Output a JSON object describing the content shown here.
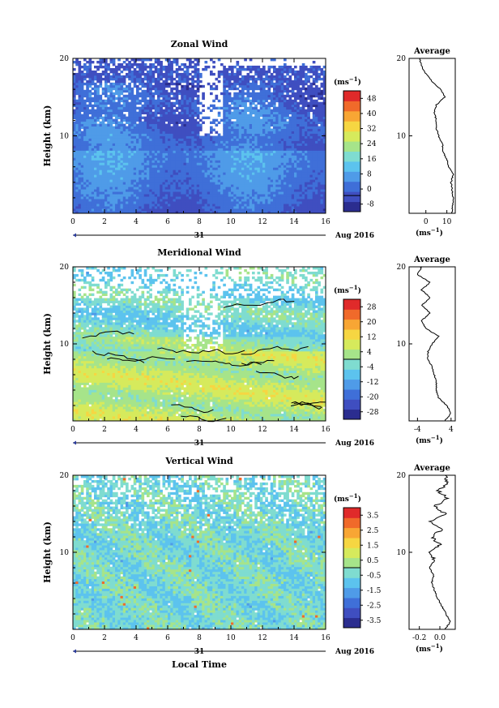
{
  "chart_data": [
    {
      "type": "heatmap",
      "title": "Zonal Wind",
      "ylabel": "Height (km)",
      "xlim": [
        0,
        16
      ],
      "ylim": [
        0,
        20
      ],
      "xticks": [
        "0",
        "2",
        "4",
        "6",
        "8",
        "10",
        "12",
        "14",
        "16"
      ],
      "yticks": [
        "10",
        "20"
      ],
      "date_marker": "31",
      "date_label": "Aug 2016",
      "colorbar": {
        "unit": "(ms",
        "unit_exp": "−1",
        "unit_close": ")",
        "ticks": [
          "48",
          "40",
          "32",
          "24",
          "16",
          "8",
          "0",
          "-8"
        ],
        "range": [
          -8,
          52
        ]
      },
      "profile": {
        "title": "Average",
        "xlabel": "(ms",
        "xlabel_exp": "−1",
        "xlabel_close": ")",
        "xlim": [
          -8,
          14
        ],
        "xticks": [
          "0",
          "10"
        ],
        "y": [
          0,
          1,
          2,
          3,
          4,
          5,
          6,
          7,
          8,
          9,
          10,
          11,
          12,
          13,
          14,
          15,
          16,
          17,
          18,
          19,
          20
        ],
        "x": [
          12.5,
          12.7,
          13,
          12.5,
          12,
          13,
          11,
          10,
          8,
          8,
          6,
          5,
          5,
          4,
          5,
          9,
          7,
          3,
          0,
          -2,
          -3
        ]
      }
    },
    {
      "type": "heatmap",
      "title": "Meridional Wind",
      "ylabel": "Height (km)",
      "xlim": [
        0,
        16
      ],
      "ylim": [
        0,
        20
      ],
      "xticks": [
        "0",
        "2",
        "4",
        "6",
        "8",
        "10",
        "12",
        "14",
        "16"
      ],
      "yticks": [
        "10",
        "20"
      ],
      "date_marker": "31",
      "date_label": "Aug 2016",
      "colorbar": {
        "unit": "(ms",
        "unit_exp": "−1",
        "unit_close": ")",
        "ticks": [
          "28",
          "20",
          "12",
          "4",
          "-4",
          "-12",
          "-20",
          "-28"
        ],
        "range": [
          -32,
          32
        ]
      },
      "profile": {
        "title": "Average",
        "xlabel": "(ms",
        "xlabel_exp": "−1",
        "xlabel_close": ")",
        "xlim": [
          -6,
          5
        ],
        "xticks": [
          "-4",
          "4"
        ],
        "y": [
          0,
          1,
          2,
          3,
          4,
          5,
          6,
          7,
          8,
          9,
          10,
          11,
          12,
          13,
          14,
          15,
          16,
          17,
          18,
          19,
          20
        ],
        "x": [
          2.5,
          4,
          3,
          1,
          0.5,
          0.5,
          0,
          -0.5,
          -1.5,
          -1.5,
          -0.5,
          1,
          -2,
          -3,
          -1,
          -3,
          -1,
          -3,
          -1,
          -4,
          -3
        ]
      }
    },
    {
      "type": "heatmap",
      "title": "Vertical Wind",
      "ylabel": "Height (km)",
      "xlabel": "Local Time",
      "xlim": [
        0,
        16
      ],
      "ylim": [
        0,
        20
      ],
      "xticks": [
        "0",
        "2",
        "4",
        "6",
        "8",
        "10",
        "12",
        "14",
        "16"
      ],
      "yticks": [
        "10",
        "20"
      ],
      "date_marker": "31",
      "date_label": "Aug 2016",
      "colorbar": {
        "unit": "(ms",
        "unit_exp": "−1",
        "unit_close": ")",
        "ticks": [
          "3.5",
          "2.5",
          "1.5",
          "0.5",
          "-0.5",
          "-1.5",
          "-2.5",
          "-3.5"
        ],
        "range": [
          -4,
          4
        ]
      },
      "profile": {
        "title": "Average",
        "xlabel": "(ms",
        "xlabel_exp": "−1",
        "xlabel_close": ")",
        "xlim": [
          -0.3,
          0.15
        ],
        "xticks": [
          "-0.2",
          "0.0"
        ],
        "y": [
          0,
          1,
          2,
          3,
          4,
          5,
          6,
          7,
          8,
          9,
          10,
          11,
          12,
          13,
          14,
          15,
          16,
          17,
          18,
          19,
          20
        ],
        "x": [
          0.05,
          0.1,
          0.06,
          0.02,
          -0.02,
          -0.05,
          -0.08,
          -0.06,
          -0.1,
          -0.05,
          -0.1,
          0.0,
          -0.08,
          0.02,
          -0.1,
          0.05,
          -0.05,
          0.08,
          -0.02,
          0.08,
          0.05
        ]
      }
    }
  ]
}
